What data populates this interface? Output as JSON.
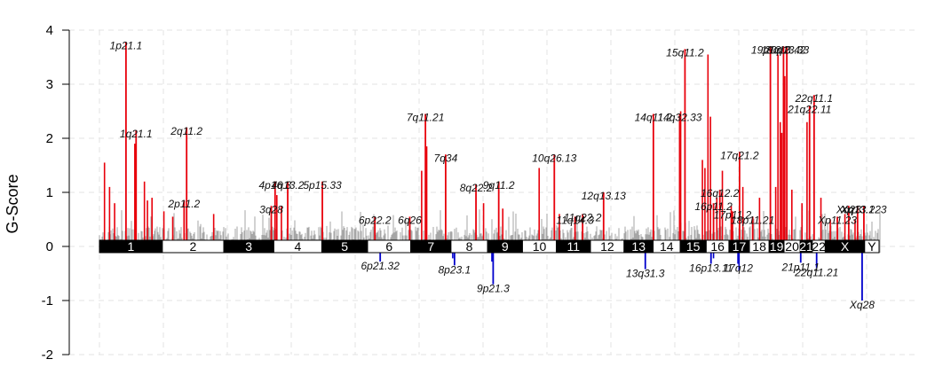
{
  "chart_data": {
    "type": "bar",
    "title": "",
    "xlabel": "",
    "ylabel": "G-Score",
    "ylim": [
      -2,
      4
    ],
    "yticks": [
      4,
      3,
      2,
      1,
      0,
      -1,
      -2
    ],
    "grid": true,
    "colors": {
      "amp": "#e8000b",
      "del": "#0000cc",
      "background": "#a6a6a6",
      "band_dark": "#000000",
      "band_light": "#ffffff"
    },
    "x_unit": "genome position (Mb)",
    "chromosomes": [
      {
        "name": "1",
        "start": 0,
        "end": 249
      },
      {
        "name": "2",
        "start": 249,
        "end": 492
      },
      {
        "name": "3",
        "start": 492,
        "end": 690
      },
      {
        "name": "4",
        "start": 690,
        "end": 880
      },
      {
        "name": "5",
        "start": 880,
        "end": 1061
      },
      {
        "name": "6",
        "start": 1061,
        "end": 1232
      },
      {
        "name": "7",
        "start": 1232,
        "end": 1391
      },
      {
        "name": "8",
        "start": 1391,
        "end": 1536
      },
      {
        "name": "9",
        "start": 1536,
        "end": 1674
      },
      {
        "name": "10",
        "start": 1674,
        "end": 1808
      },
      {
        "name": "11",
        "start": 1808,
        "end": 1943
      },
      {
        "name": "12",
        "start": 1943,
        "end": 2076
      },
      {
        "name": "13",
        "start": 2076,
        "end": 2191
      },
      {
        "name": "14",
        "start": 2191,
        "end": 2298
      },
      {
        "name": "15",
        "start": 2298,
        "end": 2401
      },
      {
        "name": "16",
        "start": 2401,
        "end": 2491
      },
      {
        "name": "17",
        "start": 2491,
        "end": 2572
      },
      {
        "name": "18",
        "start": 2572,
        "end": 2650
      },
      {
        "name": "19",
        "start": 2650,
        "end": 2709
      },
      {
        "name": "20",
        "start": 2709,
        "end": 2773
      },
      {
        "name": "21",
        "start": 2773,
        "end": 2821
      },
      {
        "name": "22",
        "start": 2821,
        "end": 2872
      },
      {
        "name": "X",
        "start": 2872,
        "end": 3028
      },
      {
        "name": "Y",
        "start": 3028,
        "end": 3085
      }
    ],
    "amplifications": [
      {
        "label": "1p21.1",
        "x": 105,
        "value": 3.78
      },
      {
        "label": "1q21.1",
        "x": 145,
        "value": 2.15
      },
      {
        "label": "2q11.2",
        "x": 345,
        "value": 2.2
      },
      {
        "label": "2p11.2",
        "x": 335,
        "value": 0.85
      },
      {
        "label": "3q28",
        "x": 680,
        "value": 0.75
      },
      {
        "label": "4p16.3",
        "x": 695,
        "value": 1.2
      },
      {
        "label": "4q13.2",
        "x": 745,
        "value": 1.2
      },
      {
        "label": "5p15.33",
        "x": 882,
        "value": 1.2
      },
      {
        "label": "6p22.2",
        "x": 1090,
        "value": 0.55
      },
      {
        "label": "6q26",
        "x": 1228,
        "value": 0.55
      },
      {
        "label": "7q11.21",
        "x": 1290,
        "value": 2.45
      },
      {
        "label": "7q34",
        "x": 1370,
        "value": 1.7
      },
      {
        "label": "8q22.2",
        "x": 1490,
        "value": 1.15
      },
      {
        "label": "9q11.2",
        "x": 1580,
        "value": 1.2
      },
      {
        "label": "10q26.13",
        "x": 1800,
        "value": 1.7
      },
      {
        "label": "11q22.2",
        "x": 1912,
        "value": 0.6
      },
      {
        "label": "11q14.3",
        "x": 1882,
        "value": 0.55
      },
      {
        "label": "12q13.13",
        "x": 1995,
        "value": 1.0
      },
      {
        "label": "14q11.2",
        "x": 2192,
        "value": 2.45
      },
      {
        "label": "14q32.33",
        "x": 2296,
        "value": 2.45
      },
      {
        "label": "15q11.2",
        "x": 2317,
        "value": 3.65
      },
      {
        "label": "16p11.2",
        "x": 2430,
        "value": 0.8
      },
      {
        "label": "16q12.2",
        "x": 2455,
        "value": 1.05
      },
      {
        "label": "17p11.2",
        "x": 2505,
        "value": 0.65
      },
      {
        "label": "17q21.2",
        "x": 2533,
        "value": 1.75
      },
      {
        "label": "18p11.21",
        "x": 2585,
        "value": 0.55
      },
      {
        "label": "19p13.2",
        "x": 2655,
        "value": 3.7
      },
      {
        "label": "19q13.42",
        "x": 2707,
        "value": 3.7
      },
      {
        "label": "20q13.33",
        "x": 2720,
        "value": 3.7
      },
      {
        "label": "21q22.11",
        "x": 2810,
        "value": 2.6
      },
      {
        "label": "22q11.1",
        "x": 2828,
        "value": 2.8
      },
      {
        "label": "Xp11.23",
        "x": 2920,
        "value": 0.55
      },
      {
        "label": "Xq23",
        "x": 2965,
        "value": 0.75
      },
      {
        "label": "Xq13.1",
        "x": 3000,
        "value": 0.75
      },
      {
        "label": "Xq13.223",
        "x": 3025,
        "value": 0.75
      }
    ],
    "deletions": [
      {
        "label": "6p21.32",
        "x": 1111,
        "value": -0.28
      },
      {
        "label": "8p23.1",
        "x": 1405,
        "value": -0.35
      },
      {
        "label": "9p21.3",
        "x": 1558,
        "value": -0.7
      },
      {
        "label": "13q31.3",
        "x": 2160,
        "value": -0.42
      },
      {
        "label": "16p13.11",
        "x": 2420,
        "value": -0.32
      },
      {
        "label": "17q12",
        "x": 2527,
        "value": -0.32
      },
      {
        "label": "21p11.1",
        "x": 2775,
        "value": -0.3
      },
      {
        "label": "22q11.21",
        "x": 2838,
        "value": -0.4
      },
      {
        "label": "Xq28",
        "x": 3018,
        "value": -1.0
      }
    ],
    "extra_amp_peaks": [
      {
        "x": 20,
        "value": 1.55
      },
      {
        "x": 40,
        "value": 1.1
      },
      {
        "x": 60,
        "value": 0.8
      },
      {
        "x": 140,
        "value": 1.9
      },
      {
        "x": 178,
        "value": 1.2
      },
      {
        "x": 190,
        "value": 0.85
      },
      {
        "x": 208,
        "value": 0.9
      },
      {
        "x": 255,
        "value": 0.65
      },
      {
        "x": 290,
        "value": 0.55
      },
      {
        "x": 452,
        "value": 0.6
      },
      {
        "x": 702,
        "value": 0.95
      },
      {
        "x": 720,
        "value": 0.75
      },
      {
        "x": 1275,
        "value": 1.4
      },
      {
        "x": 1295,
        "value": 1.85
      },
      {
        "x": 1520,
        "value": 0.8
      },
      {
        "x": 1596,
        "value": 0.7
      },
      {
        "x": 1740,
        "value": 1.45
      },
      {
        "x": 1820,
        "value": 0.6
      },
      {
        "x": 2300,
        "value": 2.5
      },
      {
        "x": 2386,
        "value": 1.6
      },
      {
        "x": 2396,
        "value": 1.45
      },
      {
        "x": 2408,
        "value": 3.55
      },
      {
        "x": 2418,
        "value": 2.4
      },
      {
        "x": 2443,
        "value": 0.9
      },
      {
        "x": 2465,
        "value": 1.4
      },
      {
        "x": 2500,
        "value": 0.75
      },
      {
        "x": 2546,
        "value": 1.1
      },
      {
        "x": 2612,
        "value": 0.9
      },
      {
        "x": 2676,
        "value": 1.1
      },
      {
        "x": 2685,
        "value": 3.55
      },
      {
        "x": 2694,
        "value": 2.3
      },
      {
        "x": 2700,
        "value": 2.1
      },
      {
        "x": 2712,
        "value": 3.15
      },
      {
        "x": 2740,
        "value": 1.05
      },
      {
        "x": 2780,
        "value": 0.8
      },
      {
        "x": 2800,
        "value": 2.3
      },
      {
        "x": 2855,
        "value": 0.9
      },
      {
        "x": 2892,
        "value": 0.5
      },
      {
        "x": 2950,
        "value": 0.6
      },
      {
        "x": 2990,
        "value": 0.5
      }
    ],
    "extra_del_peaks": [
      {
        "x": 1398,
        "value": -0.22
      },
      {
        "x": 1553,
        "value": -0.28
      },
      {
        "x": 2430,
        "value": -0.22
      },
      {
        "x": 2531,
        "value": -0.45
      }
    ]
  }
}
